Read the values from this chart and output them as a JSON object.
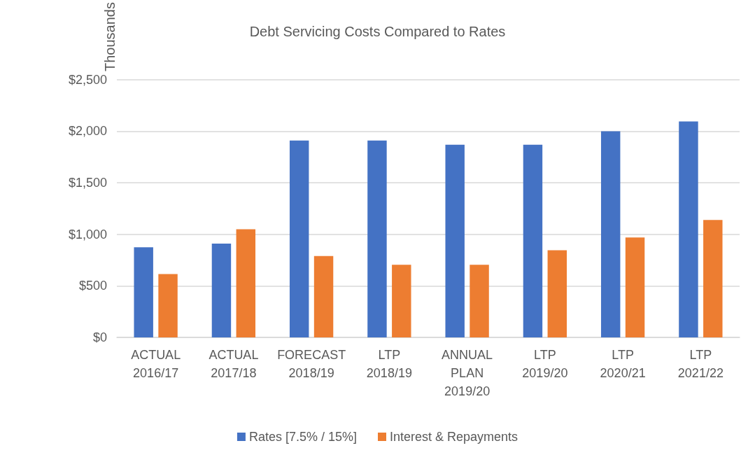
{
  "chart_data": {
    "type": "bar",
    "title": "Debt Servicing Costs Compared to Rates",
    "ylabel": "Thousands",
    "categories": [
      "ACTUAL 2016/17",
      "ACTUAL 2017/18",
      "FORECAST 2018/19",
      "LTP 2018/19",
      "ANNUAL PLAN 2019/20",
      "LTP 2019/20",
      "LTP 2020/21",
      "LTP 2021/22"
    ],
    "series": [
      {
        "name": "Rates [7.5% / 15%]",
        "color": "#4472c4",
        "values": [
          875,
          910,
          1910,
          1910,
          1870,
          1870,
          2000,
          2095
        ]
      },
      {
        "name": "Interest & Repayments",
        "color": "#ed7d31",
        "values": [
          615,
          1050,
          790,
          705,
          705,
          845,
          970,
          1140
        ]
      }
    ],
    "ylim": [
      0,
      2500
    ],
    "yticks": [
      {
        "value": 0,
        "label": "$0"
      },
      {
        "value": 500,
        "label": "$500"
      },
      {
        "value": 1000,
        "label": "$1,000"
      },
      {
        "value": 1500,
        "label": "$1,500"
      },
      {
        "value": 2000,
        "label": "$2,000"
      },
      {
        "value": 2500,
        "label": "$2,500"
      }
    ],
    "grid": "y",
    "legend": "bottom"
  }
}
